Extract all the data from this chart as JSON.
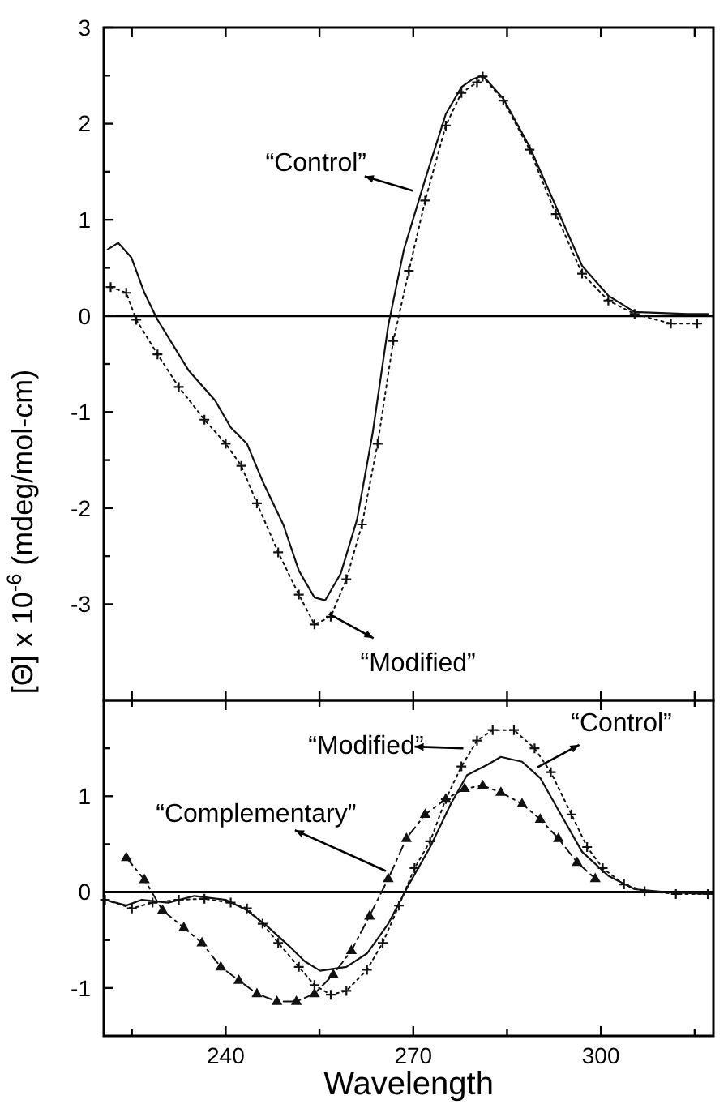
{
  "chart_data": [
    {
      "type": "line",
      "ylabel": "[Θ] x 10$^{-6}$ (mdeg/mol-cm)",
      "xlim": [
        220.5,
        318
      ],
      "ylim": [
        -4,
        3
      ],
      "xticks": [
        {
          "value": 225,
          "label": null
        },
        {
          "value": 240,
          "label": null
        },
        {
          "value": 255,
          "label": null
        },
        {
          "value": 270,
          "label": null
        },
        {
          "value": 285,
          "label": null
        },
        {
          "value": 300,
          "label": null
        },
        {
          "value": 315,
          "label": null
        }
      ],
      "yticks": [
        -3,
        {
          "value": -2.5,
          "label": null
        },
        -2,
        {
          "value": -1.5,
          "label": null
        },
        -1,
        {
          "value": -0.5,
          "label": null
        },
        0,
        {
          "value": 0.5,
          "label": null
        },
        1,
        {
          "value": 1.5,
          "label": null
        },
        2,
        {
          "value": 2.5,
          "label": null
        },
        3
      ],
      "tick_labels": "y",
      "grid": false,
      "ref_lines": [
        {
          "axis": "y",
          "value": 0
        }
      ],
      "annotations": [
        {
          "text": "“Control”",
          "x": 270,
          "y": 1.3
        },
        {
          "text": "“Modified”",
          "x": 256.5,
          "y": -3.1
        }
      ],
      "series": [
        {
          "color": "#111111",
          "marker": "none",
          "line_style": "solid",
          "x": [
            221.1,
            222.8,
            224.9,
            227,
            229.1,
            234.1,
            238.3,
            240.8,
            243.4,
            245.9,
            249.2,
            251.7,
            254.2,
            255.9,
            258.4,
            261,
            263.5,
            266,
            268.5,
            271.9,
            275.2,
            277.7,
            279.4,
            281.1,
            284.4,
            288.6,
            292.8,
            297,
            301.2,
            305.4,
            309.6,
            313.8,
            317.1
          ],
          "values": [
            0.69,
            0.76,
            0.61,
            0.24,
            -0.04,
            -0.57,
            -0.88,
            -1.16,
            -1.33,
            -1.72,
            -2.17,
            -2.65,
            -2.93,
            -2.96,
            -2.68,
            -2.12,
            -1.22,
            -0.1,
            0.69,
            1.42,
            2.1,
            2.38,
            2.46,
            2.5,
            2.26,
            1.76,
            1.14,
            0.52,
            0.21,
            0.04,
            0.03,
            0.02,
            0.02
          ]
        },
        {
          "color": "#111111",
          "marker": "cross",
          "line_style": "dotted",
          "x": [
            221.6,
            224.1,
            225.7,
            229.1,
            232.5,
            236.6,
            240,
            242.5,
            245,
            248.4,
            251.7,
            254.2,
            256.8,
            259.3,
            261.8,
            264.3,
            266.8,
            269.3,
            271.9,
            275.2,
            277.7,
            280.2,
            281.1,
            284.4,
            288.6,
            292.8,
            297,
            301.2,
            305.4,
            311.2,
            315.4
          ],
          "values": [
            0.3,
            0.24,
            -0.04,
            -0.4,
            -0.74,
            -1.08,
            -1.33,
            -1.56,
            -1.95,
            -2.46,
            -2.9,
            -3.21,
            -3.13,
            -2.74,
            -2.17,
            -1.33,
            -0.26,
            0.47,
            1.2,
            1.98,
            2.32,
            2.43,
            2.49,
            2.24,
            1.73,
            1.06,
            0.44,
            0.16,
            0.02,
            -0.08,
            -0.08
          ]
        }
      ]
    },
    {
      "type": "line",
      "xlabel": "Wavelength",
      "xlim": [
        220.5,
        318
      ],
      "ylim": [
        -1.5,
        2
      ],
      "xticks": [
        {
          "value": 225,
          "label": null
        },
        240,
        {
          "value": 255,
          "label": null
        },
        270,
        {
          "value": 285,
          "label": null
        },
        300,
        {
          "value": 315,
          "label": null
        }
      ],
      "yticks": [
        -1,
        {
          "value": -0.5,
          "label": null
        },
        0,
        {
          "value": 0.5,
          "label": null
        },
        1,
        {
          "value": 1.5,
          "label": null
        }
      ],
      "grid": false,
      "ref_lines": [
        {
          "axis": "y",
          "value": 0
        }
      ],
      "annotations": [
        {
          "text": "“Modified”",
          "x": 278,
          "y": 1.5
        },
        {
          "text": "“Control”",
          "x": 289.8,
          "y": 1.3
        },
        {
          "text": "“Complementary”",
          "x": 265.6,
          "y": 0.22
        }
      ],
      "series": [
        {
          "color": "#111111",
          "marker": "none",
          "line_style": "solid",
          "x": [
            220.7,
            224.1,
            226.6,
            230.8,
            235,
            240,
            243.4,
            246.7,
            250.1,
            252.6,
            255.1,
            259.3,
            262.6,
            266,
            269.3,
            272.7,
            276,
            278.6,
            281.9,
            284,
            287.4,
            290.3,
            293.6,
            297,
            301.2,
            305.4,
            310.4,
            317.1
          ],
          "values": [
            -0.08,
            -0.14,
            -0.08,
            -0.11,
            -0.04,
            -0.08,
            -0.19,
            -0.36,
            -0.56,
            -0.72,
            -0.82,
            -0.78,
            -0.64,
            -0.33,
            0.08,
            0.47,
            0.92,
            1.22,
            1.33,
            1.41,
            1.36,
            1.19,
            0.81,
            0.42,
            0.17,
            0.03,
            0,
            -0.02
          ]
        },
        {
          "color": "#111111",
          "marker": "cross",
          "line_style": "dotted",
          "x": [
            220.7,
            225,
            228.3,
            232.5,
            236.6,
            240.8,
            243.4,
            245.9,
            248.4,
            251.7,
            254.2,
            256.8,
            259.3,
            262.6,
            265.1,
            267.7,
            270.2,
            272.7,
            275.2,
            277.7,
            280.2,
            282.7,
            286.1,
            289.4,
            292,
            295.3,
            297.8,
            300.3,
            303.7,
            307,
            312,
            317.1
          ],
          "values": [
            -0.08,
            -0.17,
            -0.11,
            -0.08,
            -0.07,
            -0.11,
            -0.17,
            -0.33,
            -0.53,
            -0.78,
            -0.97,
            -1.07,
            -1.03,
            -0.81,
            -0.53,
            -0.14,
            0.25,
            0.53,
            0.97,
            1.31,
            1.58,
            1.69,
            1.69,
            1.5,
            1.25,
            0.81,
            0.47,
            0.25,
            0.08,
            0.01,
            -0.02,
            -0.02
          ]
        },
        {
          "color": "#111111",
          "marker": "triangle",
          "line_style": "dashed",
          "x": [
            224.1,
            227,
            229.9,
            233.3,
            236.2,
            239.2,
            242.1,
            245,
            248.2,
            251.3,
            254.2,
            257.2,
            260.1,
            263,
            266,
            268.9,
            271.9,
            275.2,
            278.2,
            281.1,
            284,
            287.4,
            290.3,
            293.2,
            296.2,
            299.1
          ],
          "values": [
            0.36,
            0.13,
            -0.19,
            -0.37,
            -0.53,
            -0.78,
            -0.92,
            -1.06,
            -1.14,
            -1.14,
            -1.06,
            -0.86,
            -0.61,
            -0.25,
            0.14,
            0.56,
            0.81,
            0.97,
            1.08,
            1.11,
            1.04,
            0.92,
            0.76,
            0.56,
            0.31,
            0.14
          ]
        }
      ]
    }
  ]
}
